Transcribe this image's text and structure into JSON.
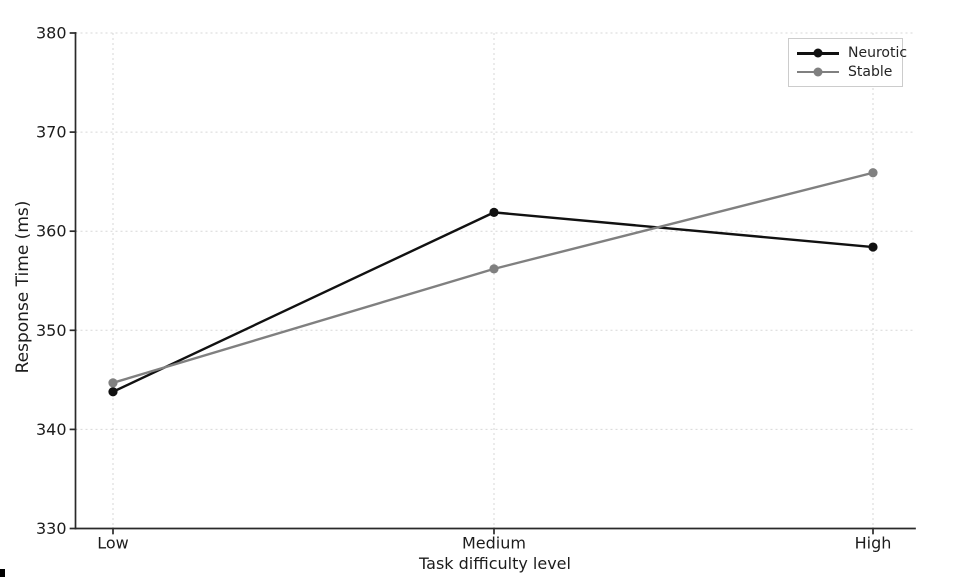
{
  "chart_data": {
    "type": "line",
    "categories": [
      "Low",
      "Medium",
      "High"
    ],
    "series": [
      {
        "name": "Neurotic",
        "color": "#111111",
        "values": [
          343.8,
          361.9,
          358.4
        ]
      },
      {
        "name": "Stable",
        "color": "#808080",
        "values": [
          344.7,
          356.2,
          365.9
        ]
      }
    ],
    "title": "",
    "xlabel": "Task difficulty level",
    "ylabel": "Response Time (ms)",
    "ylim": [
      330,
      380
    ],
    "yticks": [
      330,
      340,
      350,
      360,
      370,
      380
    ],
    "grid": "dashed, both axes",
    "grid_color": "#d7d7d7",
    "axis_color": "#2a2a2a",
    "text_color": "#1c1c1c",
    "legend_position": "upper right",
    "legend_border_color": "#cccccc",
    "marker": "circle",
    "background": "#ffffff"
  }
}
